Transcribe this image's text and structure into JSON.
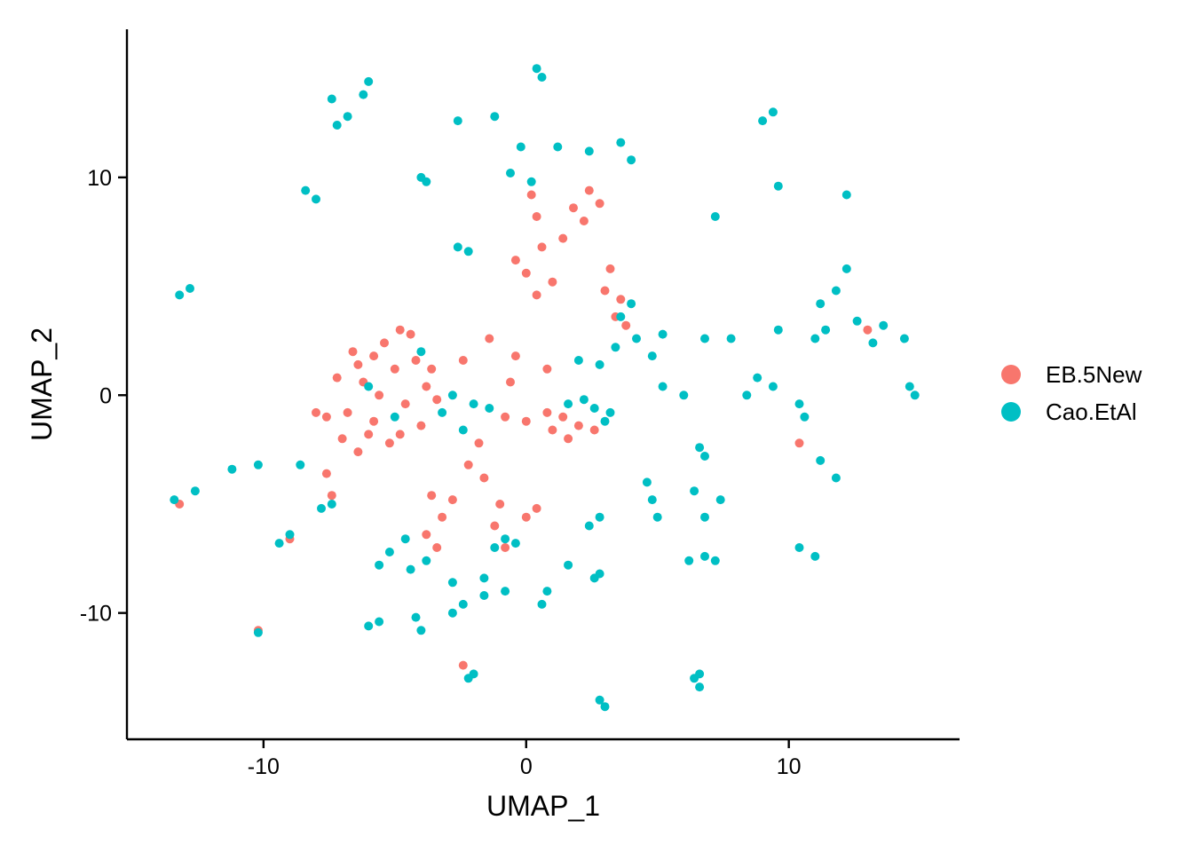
{
  "chart_data": {
    "type": "scatter",
    "title": "",
    "xlabel": "UMAP_1",
    "ylabel": "UMAP_2",
    "xlim": [
      -15.2,
      16.5
    ],
    "ylim": [
      -15.8,
      16.8
    ],
    "xticks": [
      -10,
      0,
      10
    ],
    "yticks": [
      -10,
      0,
      10
    ],
    "xtick_labels": [
      "-10",
      "0",
      "10"
    ],
    "ytick_labels": [
      "-10",
      "0",
      "10"
    ],
    "grid": false,
    "legend_position": "right",
    "series": [
      {
        "name": "EB.5New",
        "color": "#F8766D",
        "points": [
          [
            -5.0,
            1.2
          ],
          [
            -6.2,
            0.6
          ],
          [
            -6.8,
            -0.8
          ],
          [
            -5.8,
            -1.2
          ],
          [
            -4.6,
            -0.4
          ],
          [
            -4.2,
            1.6
          ],
          [
            -5.4,
            2.4
          ],
          [
            -4.8,
            3.0
          ],
          [
            -6.4,
            1.4
          ],
          [
            -7.2,
            0.8
          ],
          [
            -3.8,
            0.4
          ],
          [
            -5.2,
            -2.2
          ],
          [
            -6.4,
            -2.6
          ],
          [
            -7.6,
            -1.0
          ],
          [
            -8.0,
            -0.8
          ],
          [
            -6.6,
            2.0
          ],
          [
            -4.0,
            -1.4
          ],
          [
            -5.6,
            0.0
          ],
          [
            -3.6,
            1.2
          ],
          [
            -7.0,
            -2.0
          ],
          [
            -4.4,
            2.8
          ],
          [
            -5.8,
            1.8
          ],
          [
            -6.0,
            -1.8
          ],
          [
            -4.8,
            -1.8
          ],
          [
            -3.4,
            -0.2
          ],
          [
            1.0,
            -1.6
          ],
          [
            2.0,
            -1.4
          ],
          [
            0.0,
            -1.2
          ],
          [
            1.6,
            -2.0
          ],
          [
            2.6,
            -1.6
          ],
          [
            0.8,
            -0.8
          ],
          [
            -0.8,
            -1.0
          ],
          [
            1.4,
            -1.0
          ],
          [
            -3.6,
            -4.6
          ],
          [
            -3.2,
            -5.6
          ],
          [
            -3.8,
            -6.4
          ],
          [
            -2.8,
            -4.8
          ],
          [
            -3.4,
            -7.0
          ],
          [
            -1.2,
            -6.0
          ],
          [
            0.0,
            -5.6
          ],
          [
            -0.8,
            -7.0
          ],
          [
            0.4,
            -5.2
          ],
          [
            -1.0,
            -5.0
          ],
          [
            0.0,
            5.6
          ],
          [
            1.0,
            5.2
          ],
          [
            -0.4,
            6.2
          ],
          [
            0.6,
            6.8
          ],
          [
            0.4,
            4.6
          ],
          [
            1.8,
            8.6
          ],
          [
            2.4,
            9.4
          ],
          [
            2.8,
            8.8
          ],
          [
            2.2,
            8.0
          ],
          [
            3.2,
            5.8
          ],
          [
            3.6,
            4.4
          ],
          [
            3.4,
            3.6
          ],
          [
            3.8,
            3.2
          ],
          [
            3.0,
            4.8
          ],
          [
            -2.4,
            1.6
          ],
          [
            -1.4,
            2.6
          ],
          [
            -0.6,
            0.6
          ],
          [
            0.8,
            1.2
          ],
          [
            -1.8,
            -2.2
          ],
          [
            -2.2,
            -3.2
          ],
          [
            -1.6,
            -3.8
          ],
          [
            -0.4,
            1.8
          ],
          [
            -7.4,
            -4.6
          ],
          [
            -7.6,
            -3.6
          ],
          [
            0.4,
            8.2
          ],
          [
            0.2,
            9.2
          ],
          [
            1.4,
            7.2
          ],
          [
            -2.4,
            -12.4
          ],
          [
            10.4,
            -2.2
          ],
          [
            13.0,
            3.0
          ],
          [
            -13.2,
            -5.0
          ],
          [
            -10.2,
            -10.8
          ],
          [
            -9.0,
            -6.6
          ]
        ]
      },
      {
        "name": "Cao.EtAl",
        "color": "#00BFC4",
        "points": [
          [
            -6.2,
            13.8
          ],
          [
            -7.4,
            13.6
          ],
          [
            -6.8,
            12.8
          ],
          [
            -7.2,
            12.4
          ],
          [
            -6.0,
            14.4
          ],
          [
            0.4,
            15.0
          ],
          [
            0.6,
            14.6
          ],
          [
            -2.6,
            12.6
          ],
          [
            -1.2,
            12.8
          ],
          [
            -0.2,
            11.4
          ],
          [
            1.2,
            11.4
          ],
          [
            2.4,
            11.2
          ],
          [
            3.6,
            11.6
          ],
          [
            4.0,
            10.8
          ],
          [
            -0.6,
            10.2
          ],
          [
            0.2,
            9.8
          ],
          [
            9.0,
            12.6
          ],
          [
            9.4,
            13.0
          ],
          [
            -4.0,
            10.0
          ],
          [
            -3.8,
            9.8
          ],
          [
            -8.4,
            9.4
          ],
          [
            -8.0,
            9.0
          ],
          [
            -2.6,
            6.8
          ],
          [
            -2.2,
            6.6
          ],
          [
            -13.2,
            4.6
          ],
          [
            -12.8,
            4.9
          ],
          [
            7.2,
            8.2
          ],
          [
            9.6,
            9.6
          ],
          [
            12.2,
            9.2
          ],
          [
            3.6,
            3.6
          ],
          [
            4.2,
            2.6
          ],
          [
            3.4,
            2.2
          ],
          [
            4.0,
            4.2
          ],
          [
            2.8,
            1.4
          ],
          [
            5.2,
            2.8
          ],
          [
            6.8,
            2.6
          ],
          [
            7.8,
            2.6
          ],
          [
            2.0,
            1.6
          ],
          [
            4.8,
            1.8
          ],
          [
            11.8,
            4.8
          ],
          [
            12.2,
            5.8
          ],
          [
            11.4,
            3.0
          ],
          [
            11.0,
            2.6
          ],
          [
            12.6,
            3.4
          ],
          [
            13.6,
            3.2
          ],
          [
            14.4,
            2.6
          ],
          [
            13.2,
            2.4
          ],
          [
            11.2,
            4.2
          ],
          [
            9.6,
            3.0
          ],
          [
            5.2,
            0.4
          ],
          [
            6.0,
            0.0
          ],
          [
            8.8,
            0.8
          ],
          [
            9.4,
            0.4
          ],
          [
            10.4,
            -0.4
          ],
          [
            8.4,
            0.0
          ],
          [
            14.6,
            0.4
          ],
          [
            14.8,
            0.0
          ],
          [
            2.6,
            -0.6
          ],
          [
            3.0,
            -1.2
          ],
          [
            1.6,
            -0.4
          ],
          [
            3.2,
            -0.8
          ],
          [
            2.2,
            -0.2
          ],
          [
            -2.8,
            0.0
          ],
          [
            -2.0,
            -0.4
          ],
          [
            -1.4,
            -0.6
          ],
          [
            -3.2,
            -0.8
          ],
          [
            -2.4,
            -1.6
          ],
          [
            -11.2,
            -3.4
          ],
          [
            -10.2,
            -3.2
          ],
          [
            -8.6,
            -3.2
          ],
          [
            -13.4,
            -4.8
          ],
          [
            -12.6,
            -4.4
          ],
          [
            -9.4,
            -6.8
          ],
          [
            -9.0,
            -6.4
          ],
          [
            -7.4,
            -5.0
          ],
          [
            -7.8,
            -5.2
          ],
          [
            6.6,
            -2.4
          ],
          [
            6.8,
            -2.8
          ],
          [
            10.6,
            -1.0
          ],
          [
            11.2,
            -3.0
          ],
          [
            11.8,
            -3.8
          ],
          [
            2.4,
            -6.0
          ],
          [
            2.8,
            -5.6
          ],
          [
            4.8,
            -4.8
          ],
          [
            5.0,
            -5.6
          ],
          [
            4.6,
            -4.0
          ],
          [
            6.4,
            -4.4
          ],
          [
            7.4,
            -4.8
          ],
          [
            6.8,
            -5.6
          ],
          [
            6.8,
            -7.4
          ],
          [
            7.2,
            -7.6
          ],
          [
            6.2,
            -7.6
          ],
          [
            2.6,
            -8.4
          ],
          [
            2.8,
            -8.2
          ],
          [
            1.6,
            -7.8
          ],
          [
            10.4,
            -7.0
          ],
          [
            11.0,
            -7.4
          ],
          [
            -5.6,
            -7.8
          ],
          [
            -4.4,
            -8.0
          ],
          [
            -3.8,
            -7.6
          ],
          [
            -5.2,
            -7.2
          ],
          [
            -2.8,
            -8.6
          ],
          [
            -4.6,
            -6.6
          ],
          [
            -2.4,
            -9.6
          ],
          [
            -2.8,
            -10.0
          ],
          [
            -1.6,
            -9.2
          ],
          [
            -1.6,
            -8.4
          ],
          [
            -0.8,
            -9.0
          ],
          [
            -5.6,
            -10.4
          ],
          [
            -6.0,
            -10.6
          ],
          [
            -4.0,
            -10.8
          ],
          [
            -4.2,
            -10.2
          ],
          [
            -2.0,
            -12.8
          ],
          [
            -2.2,
            -13.0
          ],
          [
            6.6,
            -12.8
          ],
          [
            6.4,
            -13.0
          ],
          [
            6.6,
            -13.4
          ],
          [
            2.8,
            -14.0
          ],
          [
            3.0,
            -14.3
          ],
          [
            -10.2,
            -10.9
          ],
          [
            -1.2,
            -7.0
          ],
          [
            -0.4,
            -6.8
          ],
          [
            -0.8,
            -6.6
          ],
          [
            0.8,
            -9.0
          ],
          [
            0.6,
            -9.6
          ],
          [
            -6.0,
            0.4
          ],
          [
            -5.0,
            -1.0
          ],
          [
            -4.0,
            2.0
          ]
        ]
      }
    ]
  }
}
